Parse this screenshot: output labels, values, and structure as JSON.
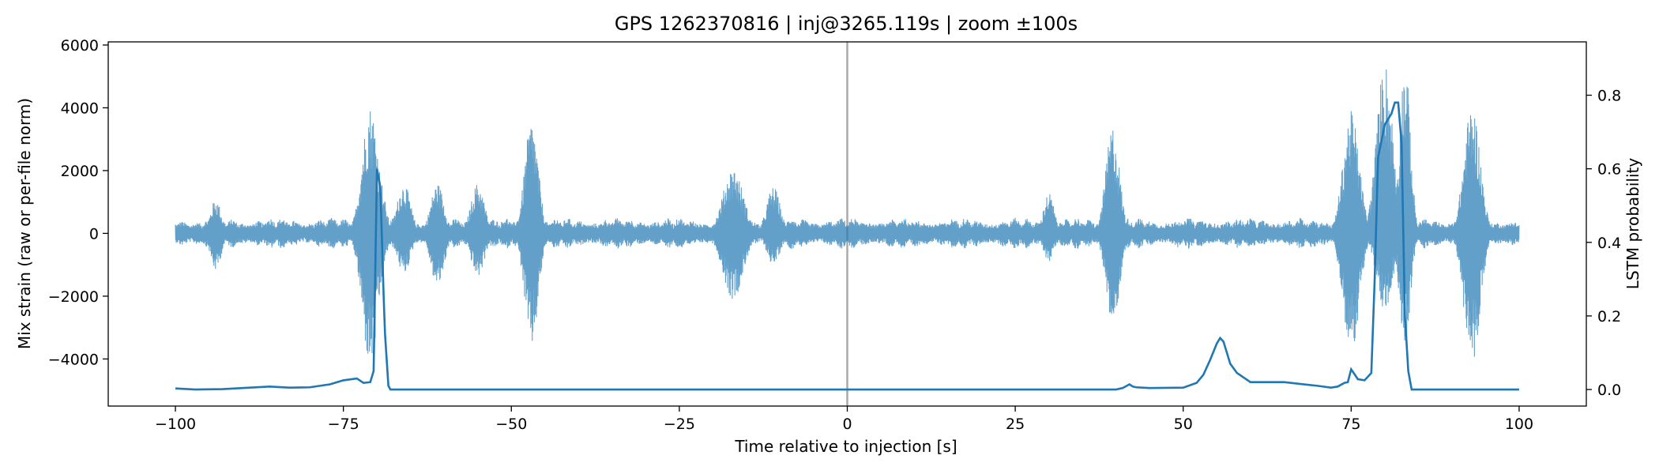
{
  "chart_data": {
    "type": "line",
    "title": "GPS 1262370816 | inj@3265.119s | zoom ±100s",
    "xlabel": "Time relative to injection [s]",
    "ylabel_left": "Mix strain (raw or per-file norm)",
    "ylabel_right": "LSTM probability",
    "xlim": [
      -110,
      110
    ],
    "ylim_left": [
      -5500,
      6100
    ],
    "ylim_right": [
      -0.045,
      0.945
    ],
    "x_ticks": [
      -100,
      -75,
      -50,
      -25,
      0,
      25,
      50,
      75,
      100
    ],
    "x_tick_labels": [
      "−100",
      "−75",
      "−50",
      "−25",
      "0",
      "25",
      "50",
      "75",
      "100"
    ],
    "y_left_ticks": [
      -4000,
      -2000,
      0,
      2000,
      4000,
      6000
    ],
    "y_left_tick_labels": [
      "−4000",
      "−2000",
      "0",
      "2000",
      "4000",
      "6000"
    ],
    "y_right_ticks": [
      0.0,
      0.2,
      0.4,
      0.6,
      0.8
    ],
    "y_right_tick_labels": [
      "0.0",
      "0.2",
      "0.4",
      "0.6",
      "0.8"
    ],
    "grid": false,
    "injection_marker_x": 0,
    "colors": {
      "strain": "#1f77b4",
      "probability": "#1f77b4",
      "marker": "#aaaaaa"
    },
    "series": [
      {
        "axis": "left",
        "x_range": [
          -100,
          100
        ],
        "baseline_amplitude": 500,
        "bursts": [
          {
            "x": -71,
            "amplitude": 4100,
            "min": -4250,
            "width": 1.2
          },
          {
            "x": -70,
            "amplitude": 2150,
            "min": -2000,
            "width": 1.0
          },
          {
            "x": -47,
            "amplitude": 3600,
            "min": -3650,
            "width": 1.0
          },
          {
            "x": -94,
            "amplitude": 1100,
            "min": -1200,
            "width": 0.8
          },
          {
            "x": -66,
            "amplitude": 1600,
            "min": -1300,
            "width": 1.0
          },
          {
            "x": -61,
            "amplitude": 1600,
            "min": -1700,
            "width": 1.0
          },
          {
            "x": -55,
            "amplitude": 1600,
            "min": -1400,
            "width": 1.0
          },
          {
            "x": -17,
            "amplitude": 2100,
            "min": -2100,
            "width": 1.5
          },
          {
            "x": -11,
            "amplitude": 1500,
            "min": -1000,
            "width": 1.0
          },
          {
            "x": 30,
            "amplitude": 1300,
            "min": -900,
            "width": 0.8
          },
          {
            "x": 39.5,
            "amplitude": 3450,
            "min": -3000,
            "width": 1.0
          },
          {
            "x": 75,
            "amplitude": 3900,
            "min": -3850,
            "width": 1.2
          },
          {
            "x": 80,
            "amplitude": 5500,
            "min": -2500,
            "width": 1.2
          },
          {
            "x": 83,
            "amplitude": 5500,
            "min": -3600,
            "width": 0.8
          },
          {
            "x": 93,
            "amplitude": 4100,
            "min": -4100,
            "width": 1.2
          }
        ]
      },
      {
        "axis": "right",
        "x": [
          -100,
          -97,
          -93,
          -90,
          -86,
          -83,
          -80,
          -77,
          -75,
          -73,
          -72,
          -71,
          -70.5,
          -70,
          -69.5,
          -69,
          -68.8,
          -68.3,
          -68,
          -60,
          -30,
          0,
          30,
          40,
          41,
          42,
          42.5,
          43,
          45,
          50,
          52,
          53,
          54,
          55,
          55.5,
          56,
          56.5,
          57,
          58,
          60,
          65,
          70,
          72,
          73,
          74,
          74.5,
          75,
          76,
          77,
          78,
          78.5,
          79,
          80,
          81,
          81.5,
          82,
          82.5,
          83,
          83.5,
          84,
          90,
          100
        ],
        "y": [
          0.003,
          0.0,
          0.001,
          0.004,
          0.008,
          0.005,
          0.006,
          0.014,
          0.025,
          0.03,
          0.018,
          0.02,
          0.05,
          0.6,
          0.55,
          0.25,
          0.15,
          0.01,
          0.0,
          0.0,
          0.0,
          0.0,
          0.0,
          0.0,
          0.004,
          0.014,
          0.008,
          0.006,
          0.004,
          0.005,
          0.018,
          0.04,
          0.08,
          0.125,
          0.14,
          0.13,
          0.1,
          0.07,
          0.045,
          0.02,
          0.02,
          0.01,
          0.005,
          0.008,
          0.018,
          0.02,
          0.055,
          0.028,
          0.025,
          0.045,
          0.3,
          0.63,
          0.72,
          0.75,
          0.78,
          0.78,
          0.67,
          0.2,
          0.05,
          0.0,
          0.0,
          0.0
        ]
      }
    ]
  }
}
